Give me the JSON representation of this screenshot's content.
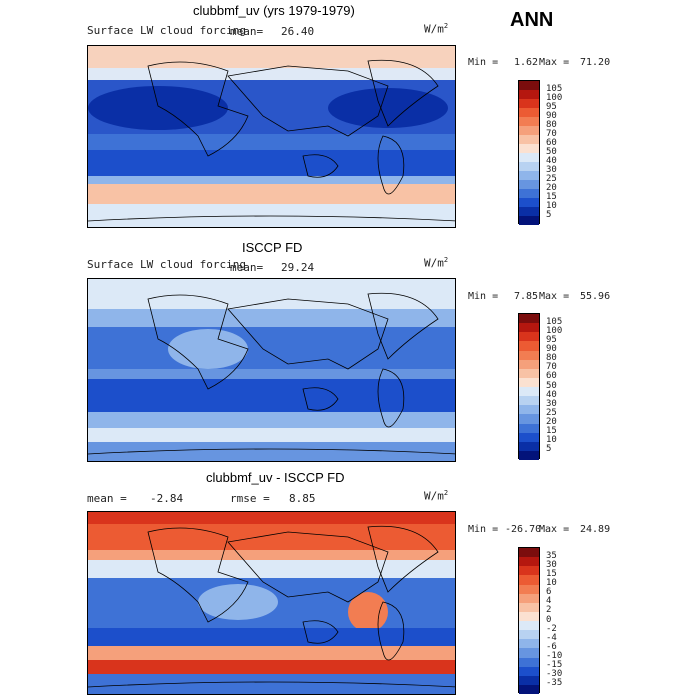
{
  "season": "ANN",
  "units_base": "W/m",
  "units_exp": "2",
  "panels": [
    {
      "title": "clubbmf_uv (yrs 1979-1979)",
      "field": "Surface LW cloud forcing",
      "mean_label": "mean=",
      "mean_value": "26.40",
      "min_label": "Min =",
      "min_value": "1.62",
      "max_label": "Max =",
      "max_value": "71.20",
      "colorbar": {
        "labels": [
          "105",
          "100",
          "95",
          "90",
          "80",
          "70",
          "60",
          "50",
          "40",
          "30",
          "25",
          "20",
          "15",
          "10",
          "5"
        ],
        "colors": [
          "#7b0d0d",
          "#b5170f",
          "#d9341c",
          "#ec5b33",
          "#f27d52",
          "#f5a07b",
          "#f8c2a5",
          "#fbe1d1",
          "#dce9f7",
          "#b8d2f1",
          "#8fb5ea",
          "#6795e0",
          "#3e72d6",
          "#1c4fcb",
          "#0a2fa6",
          "#03137a"
        ]
      }
    },
    {
      "title": "ISCCP FD",
      "field": "Surface LW cloud forcing",
      "mean_label": "mean=",
      "mean_value": "29.24",
      "min_label": "Min =",
      "min_value": "7.85",
      "max_label": "Max =",
      "max_value": "55.96",
      "colorbar": {
        "labels": [
          "105",
          "100",
          "95",
          "90",
          "80",
          "70",
          "60",
          "50",
          "40",
          "30",
          "25",
          "20",
          "15",
          "10",
          "5"
        ],
        "colors": [
          "#7b0d0d",
          "#b5170f",
          "#d9341c",
          "#ec5b33",
          "#f27d52",
          "#f5a07b",
          "#f8c2a5",
          "#fbe1d1",
          "#dce9f7",
          "#b8d2f1",
          "#8fb5ea",
          "#6795e0",
          "#3e72d6",
          "#1c4fcb",
          "#0a2fa6",
          "#03137a"
        ]
      }
    },
    {
      "title": "clubbmf_uv - ISCCP FD",
      "mean_label": "mean =",
      "mean_value": "-2.84",
      "rmse_label": "rmse =",
      "rmse_value": "8.85",
      "min_label": "Min =",
      "min_value": "-26.70",
      "max_label": "Max =",
      "max_value": "24.89",
      "colorbar": {
        "labels": [
          "35",
          "30",
          "15",
          "10",
          "6",
          "4",
          "2",
          "0",
          "-2",
          "-4",
          "-6",
          "-10",
          "-15",
          "-30",
          "-35"
        ],
        "colors": [
          "#7b0d0d",
          "#b5170f",
          "#d9341c",
          "#ec5b33",
          "#f27d52",
          "#f5a07b",
          "#f8c2a5",
          "#fbe1d1",
          "#dce9f7",
          "#b8d2f1",
          "#8fb5ea",
          "#6795e0",
          "#3e72d6",
          "#1c4fcb",
          "#0a2fa6",
          "#03137a"
        ]
      }
    }
  ]
}
